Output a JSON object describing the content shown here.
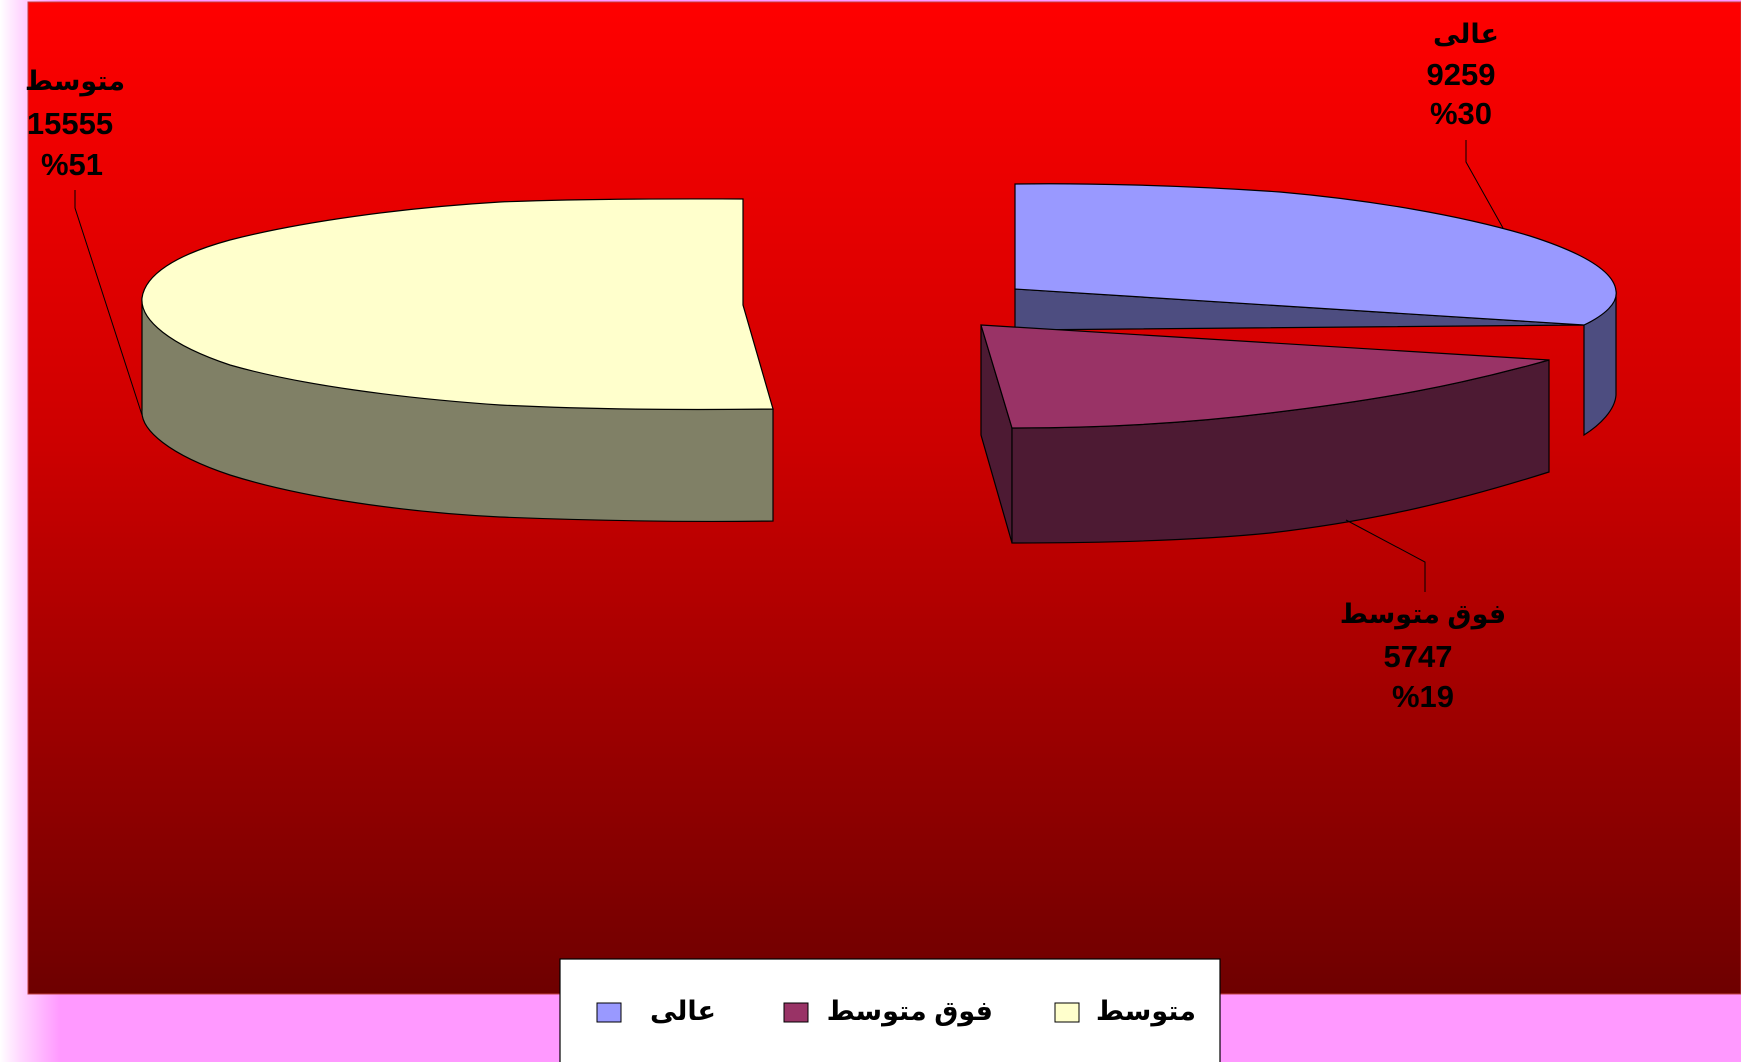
{
  "chart_data": {
    "type": "pie",
    "style": "3d-exploded",
    "categories": [
      "عالى",
      "فوق متوسط",
      "متوسط"
    ],
    "values": [
      9259,
      5747,
      15555
    ],
    "percent_labels": [
      "%30",
      "%19",
      "%51"
    ],
    "value_labels": [
      "9259",
      "5747",
      "15555"
    ],
    "colors": [
      "#9999ff",
      "#993366",
      "#ffffcc"
    ],
    "side_colors": [
      "#4d4d80",
      "#4d1a33",
      "#808066"
    ],
    "legend": {
      "placement": "bottom",
      "entries": [
        "متوسط",
        "فوق متوسط",
        "عالى"
      ],
      "entry_colors": [
        "#ffffcc",
        "#993366",
        "#9999ff"
      ]
    },
    "plot_background": {
      "gradient_from": "#ff0000",
      "gradient_to": "#6e0000"
    },
    "page_background": "#ff99ff"
  }
}
